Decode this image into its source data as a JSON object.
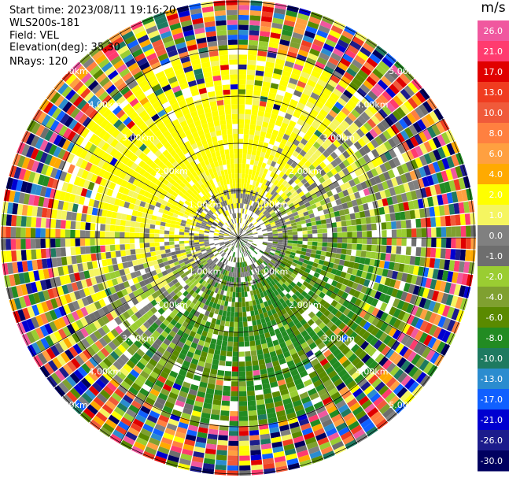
{
  "header": {
    "start_time": "Start time: 2023/08/11 19:16:20",
    "station": "WLS200s-181",
    "field": "Field: VEL",
    "elevation": "Elevation(deg): 35.30",
    "nrays": "NRays: 120"
  },
  "colorbar": {
    "unit": "m/s",
    "ticks": [
      "26.0",
      "21.0",
      "17.0",
      "13.0",
      "10.0",
      "8.0",
      "6.0",
      "4.0",
      "2.0",
      "1.0",
      "0.0",
      "-1.0",
      "-2.0",
      "-4.0",
      "-6.0",
      "-8.0",
      "-10.0",
      "-13.0",
      "-17.0",
      "-21.0",
      "-26.0",
      "-30.0"
    ],
    "colors": [
      "#f0589f",
      "#ff3b6f",
      "#e00000",
      "#f03c20",
      "#f05a3a",
      "#ff8040",
      "#ffa040",
      "#ffaa00",
      "#ffff00",
      "#f5f560",
      "#808080",
      "#6e6e6e",
      "#9acd32",
      "#7fa030",
      "#5a8a00",
      "#228b22",
      "#1e7a60",
      "#2b8ccf",
      "#1060ff",
      "#0000d0",
      "#1c1c8c",
      "#000060"
    ]
  },
  "chart_data": {
    "type": "ppi",
    "field": "VEL",
    "nrays": 120,
    "elevation_deg": 35.3,
    "range_ring_labels": [
      "1.00km",
      "2.00km",
      "3.00km",
      "4.00km",
      "5.00km"
    ],
    "color_scale_min": -30.0,
    "color_scale_max": 26.0
  }
}
